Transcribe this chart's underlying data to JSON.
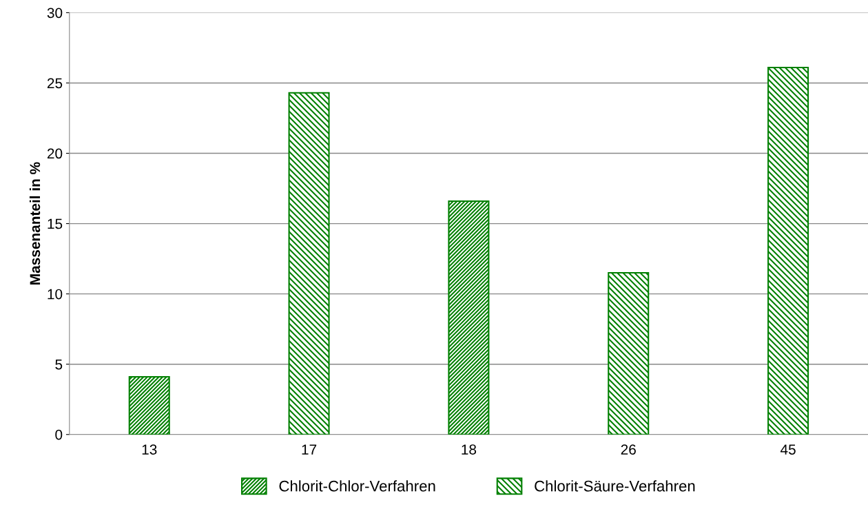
{
  "chart_data": {
    "type": "bar",
    "ylabel": "Massenanteil in %",
    "categories": [
      "13",
      "17",
      "18",
      "26",
      "45"
    ],
    "series": [
      {
        "name": "Chlorit-Chlor-Verfahren",
        "color": "#008000",
        "values": [
          4.1,
          null,
          16.6,
          null,
          null
        ]
      },
      {
        "name": "Chlorit-Säure-Verfahren",
        "color": "#008000",
        "values": [
          null,
          24.3,
          null,
          11.5,
          26.1
        ]
      }
    ],
    "ylim": [
      0,
      30
    ],
    "yticks": [
      0,
      5,
      10,
      15,
      20,
      25,
      30
    ],
    "grid": "y",
    "legend": "bottom"
  }
}
